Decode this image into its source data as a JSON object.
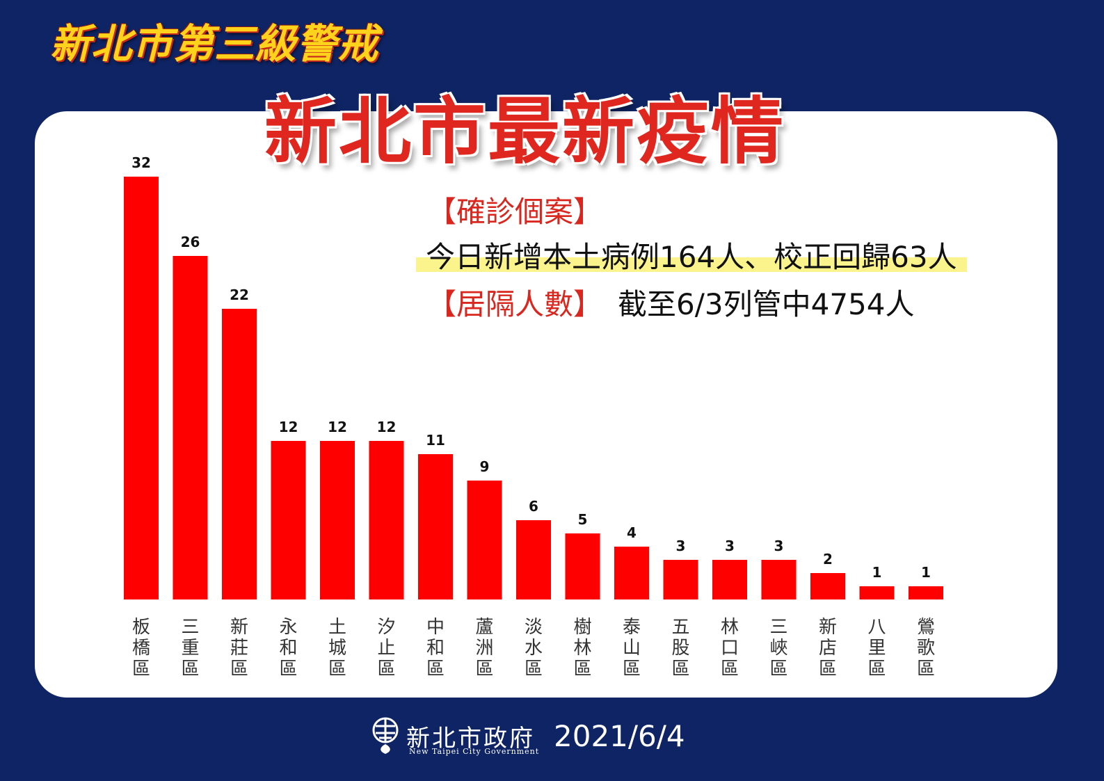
{
  "header": {
    "alert_title": "新北市第三級警戒",
    "main_title": "新北市最新疫情"
  },
  "info": {
    "cases_heading": "【確診個案】",
    "today_line": "今日新增本土病例164人、校正回歸63人",
    "quarantine_heading": "【居隔人數】",
    "quarantine_value": "截至6/3列管中4754人"
  },
  "footer": {
    "org_name": "新北市政府",
    "org_name_en": "New Taipei City Government",
    "date": "2021/6/4"
  },
  "colors": {
    "background": "#0f2464",
    "bar": "#ff0000",
    "title_red": "#e0271f",
    "alert_yellow": "#ffd21c",
    "highlight": "#fbf48d"
  },
  "chart_data": {
    "type": "bar",
    "categories": [
      "板橋區",
      "三重區",
      "新莊區",
      "永和區",
      "土城區",
      "汐止區",
      "中和區",
      "蘆洲區",
      "淡水區",
      "樹林區",
      "泰山區",
      "五股區",
      "林口區",
      "三峽區",
      "新店區",
      "八里區",
      "鶯歌區"
    ],
    "values": [
      32,
      26,
      22,
      12,
      12,
      12,
      11,
      9,
      6,
      5,
      4,
      3,
      3,
      3,
      2,
      1,
      1
    ],
    "title": "",
    "xlabel": "",
    "ylabel": "",
    "ylim": [
      0,
      32
    ],
    "grid": false,
    "data_labels": true
  }
}
